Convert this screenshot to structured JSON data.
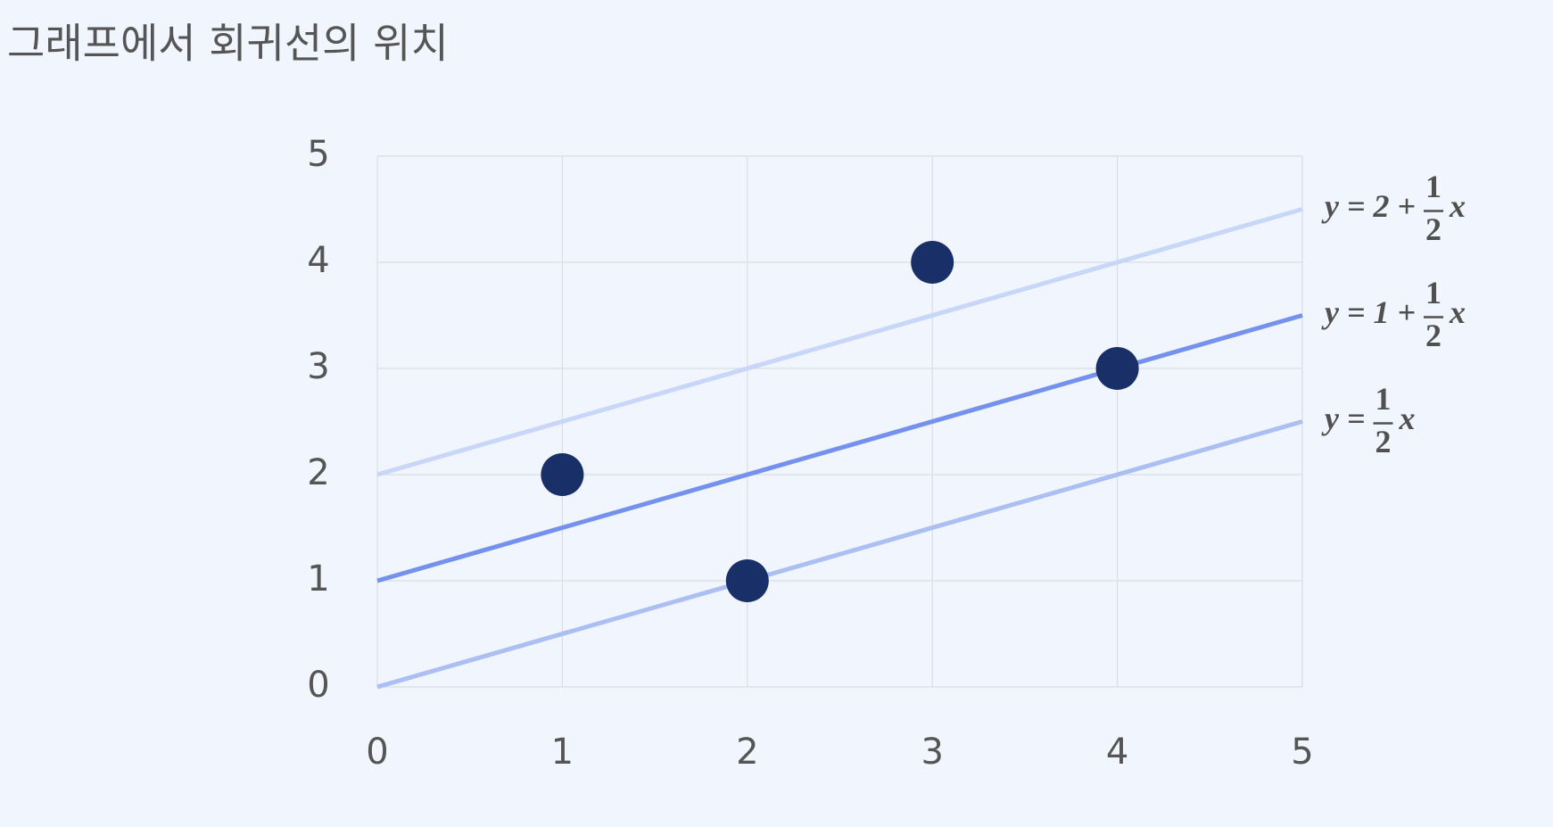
{
  "chart_data": {
    "type": "scatter",
    "title": "그래프에서 회귀선의 위치",
    "x": [
      1,
      2,
      3,
      4
    ],
    "values": [
      2,
      1,
      4,
      3
    ],
    "color": "#182f68",
    "xlim": [
      0,
      5
    ],
    "ylim": [
      0,
      5
    ],
    "xticks": [
      0,
      1,
      2,
      3,
      4,
      5
    ],
    "yticks": [
      0,
      1,
      2,
      3,
      4,
      5
    ],
    "grid": true,
    "lines": [
      {
        "x": [
          0,
          5
        ],
        "values": [
          2,
          4.5
        ],
        "color": "#c8d7f8",
        "label": {
          "prefix": "y = 2 +",
          "numerator": "1",
          "denominator": "2",
          "suffix": "x"
        }
      },
      {
        "x": [
          0,
          5
        ],
        "values": [
          1,
          3.5
        ],
        "color": "#7491ee",
        "label": {
          "prefix": "y = 1 +",
          "numerator": "1",
          "denominator": "2",
          "suffix": "x"
        }
      },
      {
        "x": [
          0,
          5
        ],
        "values": [
          0,
          2.5
        ],
        "color": "#abbff3",
        "label": {
          "prefix": "y =",
          "numerator": "1",
          "denominator": "2",
          "suffix": "x"
        }
      }
    ]
  }
}
